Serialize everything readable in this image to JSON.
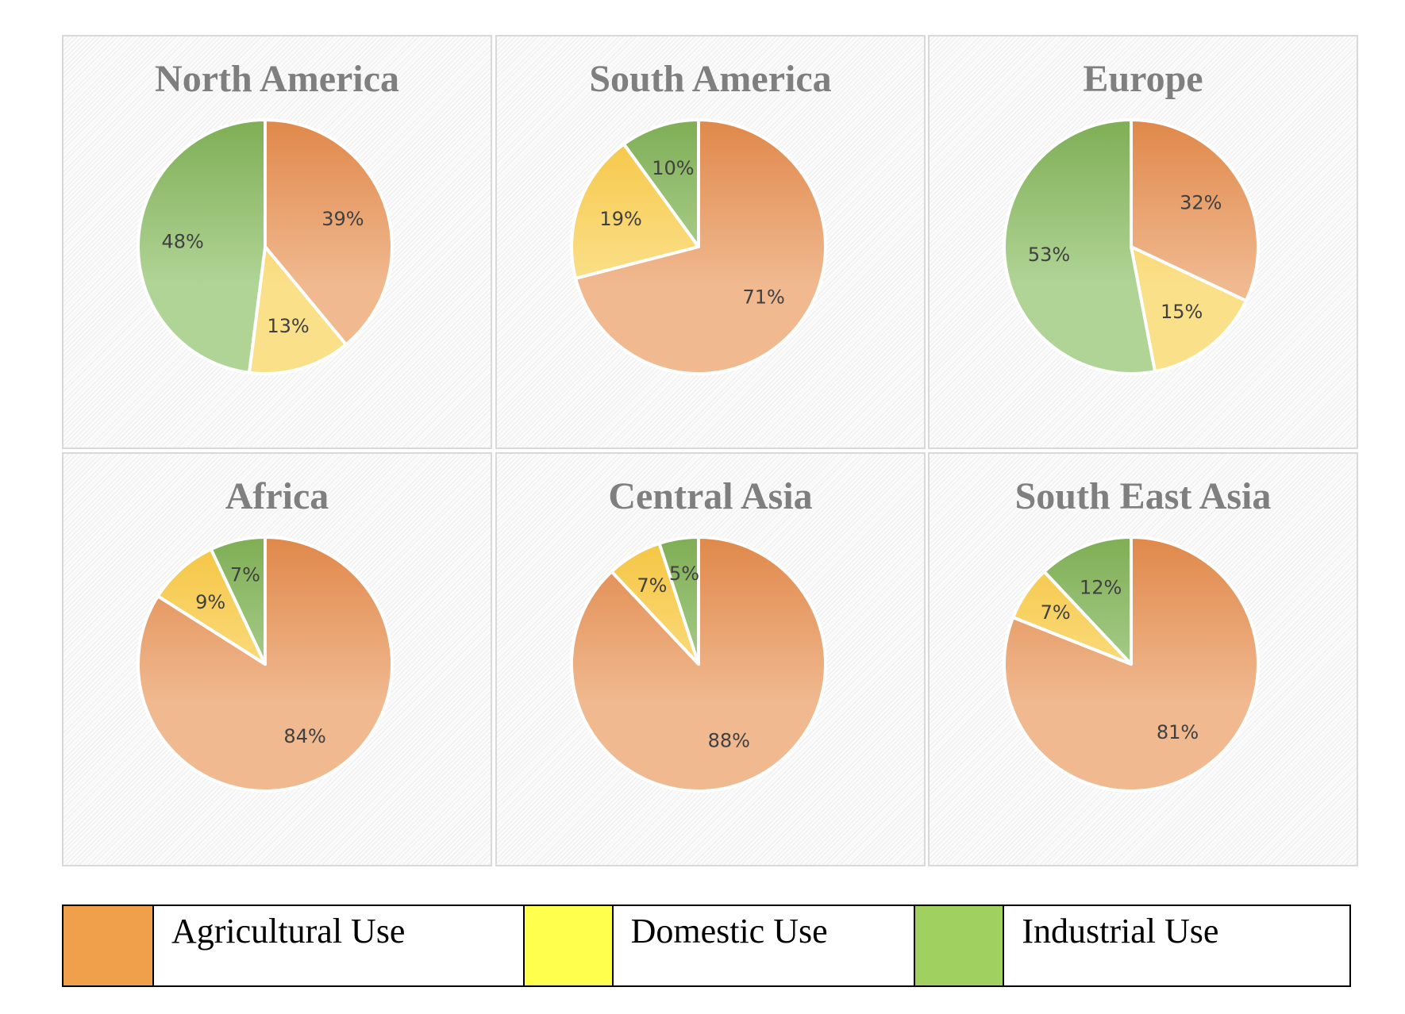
{
  "chart_data": [
    {
      "type": "pie",
      "title": "North America",
      "categories": [
        "Agricultural Use",
        "Domestic Use",
        "Industrial Use"
      ],
      "values": [
        39,
        13,
        48
      ],
      "labels": [
        "39%",
        "13%",
        "48%"
      ]
    },
    {
      "type": "pie",
      "title": "South America",
      "categories": [
        "Agricultural Use",
        "Domestic Use",
        "Industrial Use"
      ],
      "values": [
        71,
        19,
        10
      ],
      "labels": [
        "71%",
        "19%",
        "10%"
      ]
    },
    {
      "type": "pie",
      "title": "Europe",
      "categories": [
        "Agricultural Use",
        "Domestic Use",
        "Industrial Use"
      ],
      "values": [
        32,
        15,
        53
      ],
      "labels": [
        "32%",
        "15%",
        "53%"
      ]
    },
    {
      "type": "pie",
      "title": "Africa",
      "categories": [
        "Agricultural Use",
        "Domestic Use",
        "Industrial Use"
      ],
      "values": [
        84,
        9,
        7
      ],
      "labels": [
        "84%",
        "9%",
        "7%"
      ]
    },
    {
      "type": "pie",
      "title": "Central Asia",
      "categories": [
        "Agricultural Use",
        "Domestic Use",
        "Industrial Use"
      ],
      "values": [
        88,
        7,
        5
      ],
      "labels": [
        "88%",
        "7%",
        "5%"
      ]
    },
    {
      "type": "pie",
      "title": "South East Asia",
      "categories": [
        "Agricultural Use",
        "Domestic Use",
        "Industrial Use"
      ],
      "values": [
        81,
        7,
        12
      ],
      "labels": [
        "81%",
        "7%",
        "12%"
      ]
    }
  ],
  "legend": {
    "items": [
      {
        "label": "Agricultural Use",
        "color": "#f0a04b"
      },
      {
        "label": "Domestic Use",
        "color": "#ffff4d"
      },
      {
        "label": "Industrial Use",
        "color": "#a0d060"
      }
    ]
  },
  "colors": {
    "Agricultural Use": [
      "#e0884a",
      "#f0b990"
    ],
    "Domestic Use": [
      "#f5c542",
      "#fbe08a"
    ],
    "Industrial Use": [
      "#7fae55",
      "#b0d496"
    ]
  }
}
